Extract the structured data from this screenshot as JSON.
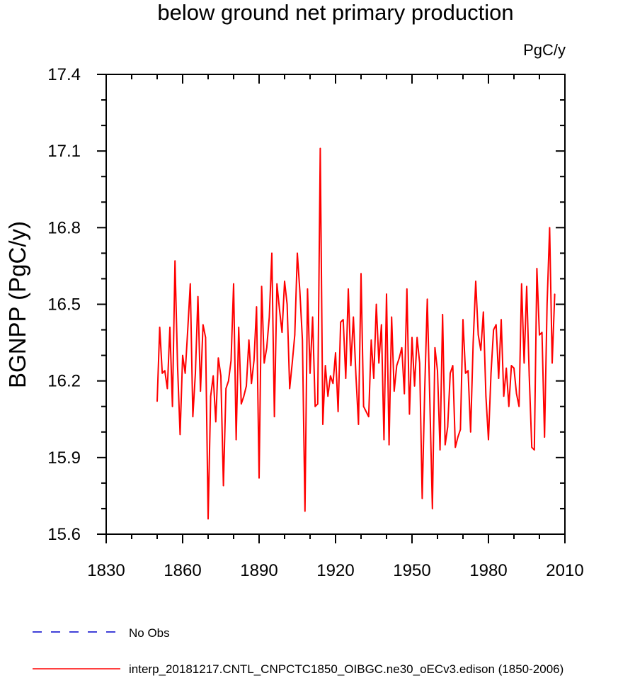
{
  "chart_data": {
    "type": "line",
    "title": "below ground net primary production",
    "units": "PgC/y",
    "xlabel": "",
    "ylabel": "BGNPP  (PgC/y)",
    "xlim": [
      1830,
      2010
    ],
    "ylim": [
      15.6,
      17.4
    ],
    "x_ticks": [
      1830,
      1860,
      1890,
      1920,
      1950,
      1980,
      2010
    ],
    "y_ticks": [
      "15.6",
      "15.9",
      "16.2",
      "16.5",
      "16.8",
      "17.1",
      "17.4"
    ],
    "x_minor_step": 10,
    "y_minor_step": 0.1,
    "grid": false,
    "x_start": 1850,
    "series": [
      {
        "name": "interp_20181217.CNTL_CNPCTC1850_OIBGC.ne30_oECv3.edison (1850-2006)",
        "color": "#ff0000",
        "dash": "solid",
        "values": [
          16.12,
          16.41,
          16.23,
          16.24,
          16.17,
          16.41,
          16.1,
          16.67,
          16.26,
          15.99,
          16.3,
          16.23,
          16.4,
          16.58,
          16.06,
          16.23,
          16.53,
          16.16,
          16.42,
          16.37,
          15.66,
          16.14,
          16.22,
          16.04,
          16.29,
          16.22,
          15.79,
          16.17,
          16.2,
          16.28,
          16.58,
          15.97,
          16.41,
          16.11,
          16.14,
          16.18,
          16.36,
          16.19,
          16.28,
          16.49,
          15.82,
          16.57,
          16.27,
          16.33,
          16.45,
          16.7,
          16.06,
          16.58,
          16.48,
          16.39,
          16.59,
          16.5,
          16.17,
          16.27,
          16.38,
          16.7,
          16.55,
          16.36,
          15.69,
          16.56,
          16.23,
          16.45,
          16.1,
          16.11,
          17.11,
          16.03,
          16.26,
          16.14,
          16.22,
          16.19,
          16.31,
          16.08,
          16.43,
          16.44,
          16.21,
          16.56,
          16.26,
          16.45,
          16.22,
          16.03,
          16.62,
          16.1,
          16.08,
          16.06,
          16.36,
          16.21,
          16.5,
          16.27,
          16.42,
          15.97,
          16.54,
          15.95,
          16.45,
          16.16,
          16.26,
          16.29,
          16.33,
          16.15,
          16.56,
          16.07,
          16.37,
          16.18,
          16.37,
          16.27,
          15.74,
          16.17,
          16.52,
          16.12,
          15.7,
          16.33,
          16.24,
          15.93,
          16.46,
          15.95,
          16.02,
          16.23,
          16.26,
          15.94,
          15.98,
          16.01,
          16.44,
          16.23,
          16.24,
          16.0,
          16.35,
          16.59,
          16.38,
          16.32,
          16.47,
          16.14,
          15.97,
          16.23,
          16.4,
          16.42,
          16.21,
          16.44,
          16.14,
          16.25,
          16.1,
          16.26,
          16.25,
          16.15,
          16.1,
          16.58,
          16.27,
          16.57,
          16.22,
          15.94,
          15.93,
          16.64,
          16.38,
          16.39,
          15.98,
          16.5,
          16.8,
          16.27,
          16.54
        ]
      }
    ],
    "legend": {
      "placement": "bottom-left",
      "entries": [
        {
          "label": "No Obs",
          "color": "#0000cc",
          "dash": "dashed"
        },
        {
          "label": "interp_20181217.CNTL_CNPCTC1850_OIBGC.ne30_oECv3.edison (1850-2006)",
          "color": "#ff0000",
          "dash": "solid"
        }
      ]
    }
  }
}
